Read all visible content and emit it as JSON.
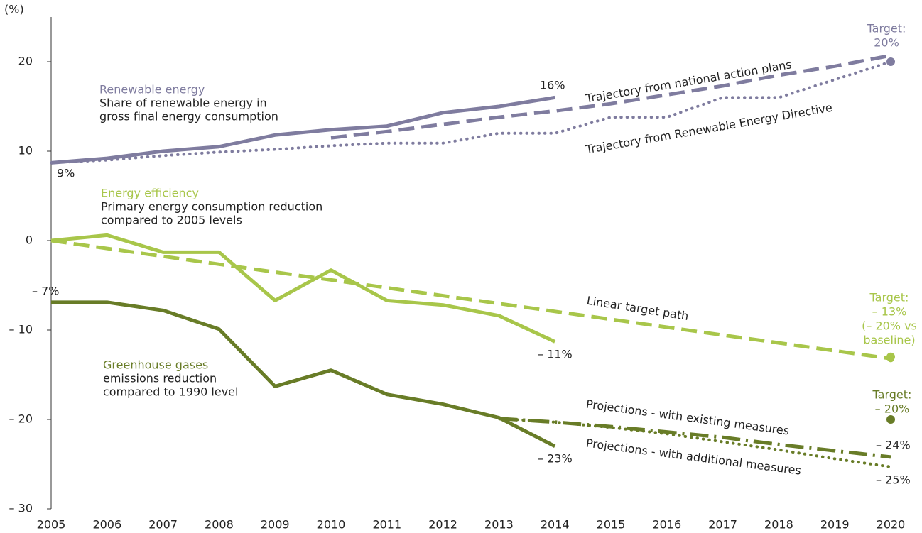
{
  "chart_data": {
    "type": "line",
    "y_label": "(%)",
    "x": [
      2005,
      2006,
      2007,
      2008,
      2009,
      2010,
      2011,
      2012,
      2013,
      2014,
      2015,
      2016,
      2017,
      2018,
      2019,
      2020
    ],
    "xlim": [
      2005,
      2020
    ],
    "xticks": [
      2005,
      2006,
      2007,
      2008,
      2009,
      2010,
      2011,
      2012,
      2013,
      2014,
      2015,
      2016,
      2017,
      2018,
      2019,
      2020
    ],
    "ylim": [
      -30,
      25
    ],
    "yticks": [
      20,
      10,
      0,
      {
        "value": -10,
        "label": "– 10"
      },
      {
        "value": -20,
        "label": "– 20"
      },
      {
        "value": -30,
        "label": "– 30"
      }
    ],
    "grid": false,
    "groups": [
      {
        "name": "Renewable energy",
        "description": [
          "Share of renewable energy in",
          "gross final energy consumption"
        ],
        "color": "#7f7c9f",
        "series": [
          {
            "style": "solid",
            "values": [
              8.7,
              9.2,
              10,
              10.5,
              11.8,
              12.4,
              12.8,
              14.3,
              15,
              16,
              null,
              null,
              null,
              null,
              null,
              null
            ],
            "value_labels": [
              "9%",
              null,
              null,
              null,
              null,
              null,
              null,
              null,
              null,
              "16%",
              null,
              null,
              null,
              null,
              null,
              null
            ]
          },
          {
            "name": "Trajectory from national action plans",
            "style": "dashed",
            "values": [
              null,
              null,
              null,
              null,
              null,
              11.5,
              12.2,
              13,
              13.8,
              14.5,
              15.3,
              16.3,
              17.3,
              18.5,
              19.5,
              20.7
            ]
          },
          {
            "name": "Trajectory from Renewable Energy Directive",
            "style": "dotted",
            "values": [
              8.7,
              9,
              9.5,
              9.9,
              10.2,
              10.6,
              10.9,
              10.9,
              12,
              12,
              13.8,
              13.8,
              16,
              16,
              18,
              20
            ]
          },
          {
            "style": "target",
            "values": [
              null,
              null,
              null,
              null,
              null,
              null,
              null,
              null,
              null,
              null,
              null,
              null,
              null,
              null,
              null,
              20
            ],
            "value_labels": [
              null,
              null,
              null,
              null,
              null,
              null,
              null,
              null,
              null,
              null,
              null,
              null,
              null,
              null,
              null,
              [
                "Target:",
                "20%"
              ]
            ]
          }
        ]
      },
      {
        "name": "Energy efficiency",
        "description": [
          "Primary energy consumption reduction",
          "compared to 2005 levels"
        ],
        "color": "#a8c64a",
        "series": [
          {
            "style": "solid",
            "values": [
              0,
              0.6,
              -1.3,
              -1.3,
              -6.7,
              -3.3,
              -6.7,
              -7.2,
              -8.4,
              -11.3,
              null,
              null,
              null,
              null,
              null,
              null
            ],
            "value_labels": [
              null,
              null,
              null,
              null,
              null,
              null,
              null,
              null,
              null,
              "– 11%",
              null,
              null,
              null,
              null,
              null,
              null
            ]
          },
          {
            "name": "Linear target path",
            "style": "dashed",
            "values": [
              0,
              -0.88,
              -1.76,
              -2.64,
              -3.52,
              -4.4,
              -5.28,
              -6.16,
              -7.04,
              -7.92,
              -8.8,
              -9.68,
              -10.56,
              -11.44,
              -12.32,
              -13.2
            ]
          },
          {
            "style": "target",
            "values": [
              null,
              null,
              null,
              null,
              null,
              null,
              null,
              null,
              null,
              null,
              null,
              null,
              null,
              null,
              null,
              -13
            ],
            "value_labels": [
              null,
              null,
              null,
              null,
              null,
              null,
              null,
              null,
              null,
              null,
              null,
              null,
              null,
              null,
              null,
              [
                "Target:",
                "– 13%",
                "(– 20% vs",
                "baseline)"
              ]
            ]
          }
        ]
      },
      {
        "name": "Greenhouse gases",
        "description": [
          "emissions reduction",
          "compared to 1990 level"
        ],
        "color": "#687c27",
        "series": [
          {
            "style": "solid",
            "values": [
              -6.9,
              -6.9,
              -7.8,
              -9.9,
              -16.3,
              -14.5,
              -17.2,
              -18.3,
              -19.8,
              -23,
              null,
              null,
              null,
              null,
              null,
              null
            ],
            "value_labels": [
              "– 7%",
              null,
              null,
              null,
              null,
              null,
              null,
              null,
              null,
              "– 23%",
              null,
              null,
              null,
              null,
              null,
              null
            ]
          },
          {
            "name": "Projections - with existing measures",
            "style": "dashdot",
            "values": [
              null,
              null,
              null,
              null,
              null,
              null,
              null,
              null,
              -19.9,
              -20.3,
              -20.8,
              -21.4,
              -22,
              -22.8,
              -23.5,
              -24.2
            ],
            "value_labels": [
              null,
              null,
              null,
              null,
              null,
              null,
              null,
              null,
              null,
              null,
              null,
              null,
              null,
              null,
              null,
              "– 24%"
            ]
          },
          {
            "name": "Projections - with additional measures",
            "style": "dotted",
            "values": [
              null,
              null,
              null,
              null,
              null,
              null,
              null,
              null,
              -19.9,
              -20.3,
              -20.9,
              -21.6,
              -22.5,
              -23.4,
              -24.4,
              -25.3
            ],
            "value_labels": [
              null,
              null,
              null,
              null,
              null,
              null,
              null,
              null,
              null,
              null,
              null,
              null,
              null,
              null,
              null,
              "– 25%"
            ]
          },
          {
            "style": "target",
            "values": [
              null,
              null,
              null,
              null,
              null,
              null,
              null,
              null,
              null,
              null,
              null,
              null,
              null,
              null,
              null,
              -20
            ],
            "value_labels": [
              null,
              null,
              null,
              null,
              null,
              null,
              null,
              null,
              null,
              null,
              null,
              null,
              null,
              null,
              null,
              [
                "Target:",
                "– 20%"
              ]
            ]
          }
        ]
      }
    ]
  }
}
